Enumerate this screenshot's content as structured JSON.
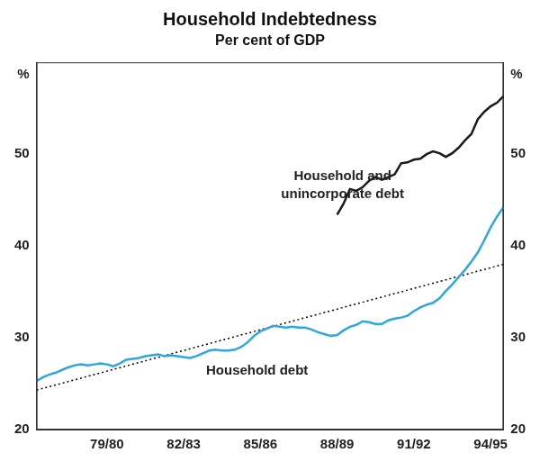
{
  "chart_data": {
    "type": "line",
    "title": "Household Indebtedness",
    "subtitle": "Per cent of GDP",
    "ylabel": "%",
    "categories": [
      null,
      null,
      null,
      null,
      null,
      null,
      null,
      null,
      null,
      null,
      null,
      "79/80",
      null,
      null,
      null,
      null,
      null,
      null,
      null,
      null,
      null,
      null,
      null,
      "82/83",
      null,
      null,
      null,
      null,
      null,
      null,
      null,
      null,
      null,
      null,
      null,
      "85/86",
      null,
      null,
      null,
      null,
      null,
      null,
      null,
      null,
      null,
      null,
      null,
      "88/89",
      null,
      null,
      null,
      null,
      null,
      null,
      null,
      null,
      null,
      null,
      null,
      "91/92",
      null,
      null,
      null,
      null,
      null,
      null,
      null,
      null,
      null,
      null,
      null,
      "94/95",
      null,
      null
    ],
    "series": [
      {
        "name": "Household debt",
        "color": "#2ea6df",
        "line_style": "solid",
        "values": [
          25.3,
          25.7,
          26.0,
          26.2,
          26.5,
          26.8,
          27.0,
          27.1,
          27.0,
          27.1,
          27.2,
          27.1,
          26.9,
          27.2,
          27.6,
          27.7,
          27.8,
          28.0,
          28.1,
          28.2,
          28.0,
          28.1,
          28.0,
          27.9,
          27.8,
          28.0,
          28.3,
          28.6,
          28.7,
          28.6,
          28.6,
          28.7,
          29.0,
          29.5,
          30.2,
          30.7,
          31.0,
          31.3,
          31.2,
          31.1,
          31.2,
          31.1,
          31.1,
          30.9,
          30.6,
          30.4,
          30.2,
          30.3,
          30.8,
          31.2,
          31.4,
          31.8,
          31.7,
          31.5,
          31.5,
          31.9,
          32.1,
          32.2,
          32.4,
          32.9,
          33.3,
          33.6,
          33.8,
          34.3,
          35.1,
          35.8,
          36.6,
          37.4,
          38.3,
          39.3,
          40.6,
          42.0,
          43.2,
          44.2
        ]
      },
      {
        "name": "Household and unincorporate debt",
        "color": "#1a1a1a",
        "line_style": "solid",
        "values": [
          null,
          null,
          null,
          null,
          null,
          null,
          null,
          null,
          null,
          null,
          null,
          null,
          null,
          null,
          null,
          null,
          null,
          null,
          null,
          null,
          null,
          null,
          null,
          null,
          null,
          null,
          null,
          null,
          null,
          null,
          null,
          null,
          null,
          null,
          null,
          null,
          null,
          null,
          null,
          null,
          null,
          null,
          null,
          null,
          null,
          null,
          null,
          43.4,
          44.6,
          46.2,
          46.0,
          46.4,
          47.1,
          47.5,
          47.2,
          47.5,
          47.8,
          49.0,
          49.1,
          49.4,
          49.5,
          50.0,
          50.3,
          50.1,
          49.7,
          50.1,
          50.7,
          51.5,
          52.2,
          53.8,
          54.6,
          55.2,
          55.6,
          56.3
        ]
      },
      {
        "color": "#000000",
        "line_style": "dotted",
        "values": [
          24.3,
          null,
          null,
          null,
          null,
          null,
          null,
          null,
          null,
          null,
          null,
          null,
          null,
          null,
          null,
          null,
          null,
          null,
          null,
          null,
          null,
          null,
          null,
          null,
          null,
          null,
          null,
          null,
          null,
          null,
          null,
          null,
          null,
          null,
          null,
          null,
          null,
          null,
          null,
          null,
          null,
          null,
          null,
          null,
          null,
          null,
          null,
          null,
          null,
          null,
          null,
          null,
          null,
          null,
          null,
          null,
          null,
          null,
          null,
          null,
          null,
          null,
          null,
          null,
          null,
          null,
          null,
          null,
          null,
          null,
          null,
          null,
          null,
          38.0
        ]
      }
    ],
    "annotations": [
      {
        "text": [
          "Household and",
          "unincorporate debt"
        ]
      },
      {
        "text": [
          "Household debt"
        ]
      }
    ],
    "ylim": [
      20,
      60
    ],
    "yticks": [
      20,
      30,
      40,
      50
    ],
    "grid": false
  }
}
